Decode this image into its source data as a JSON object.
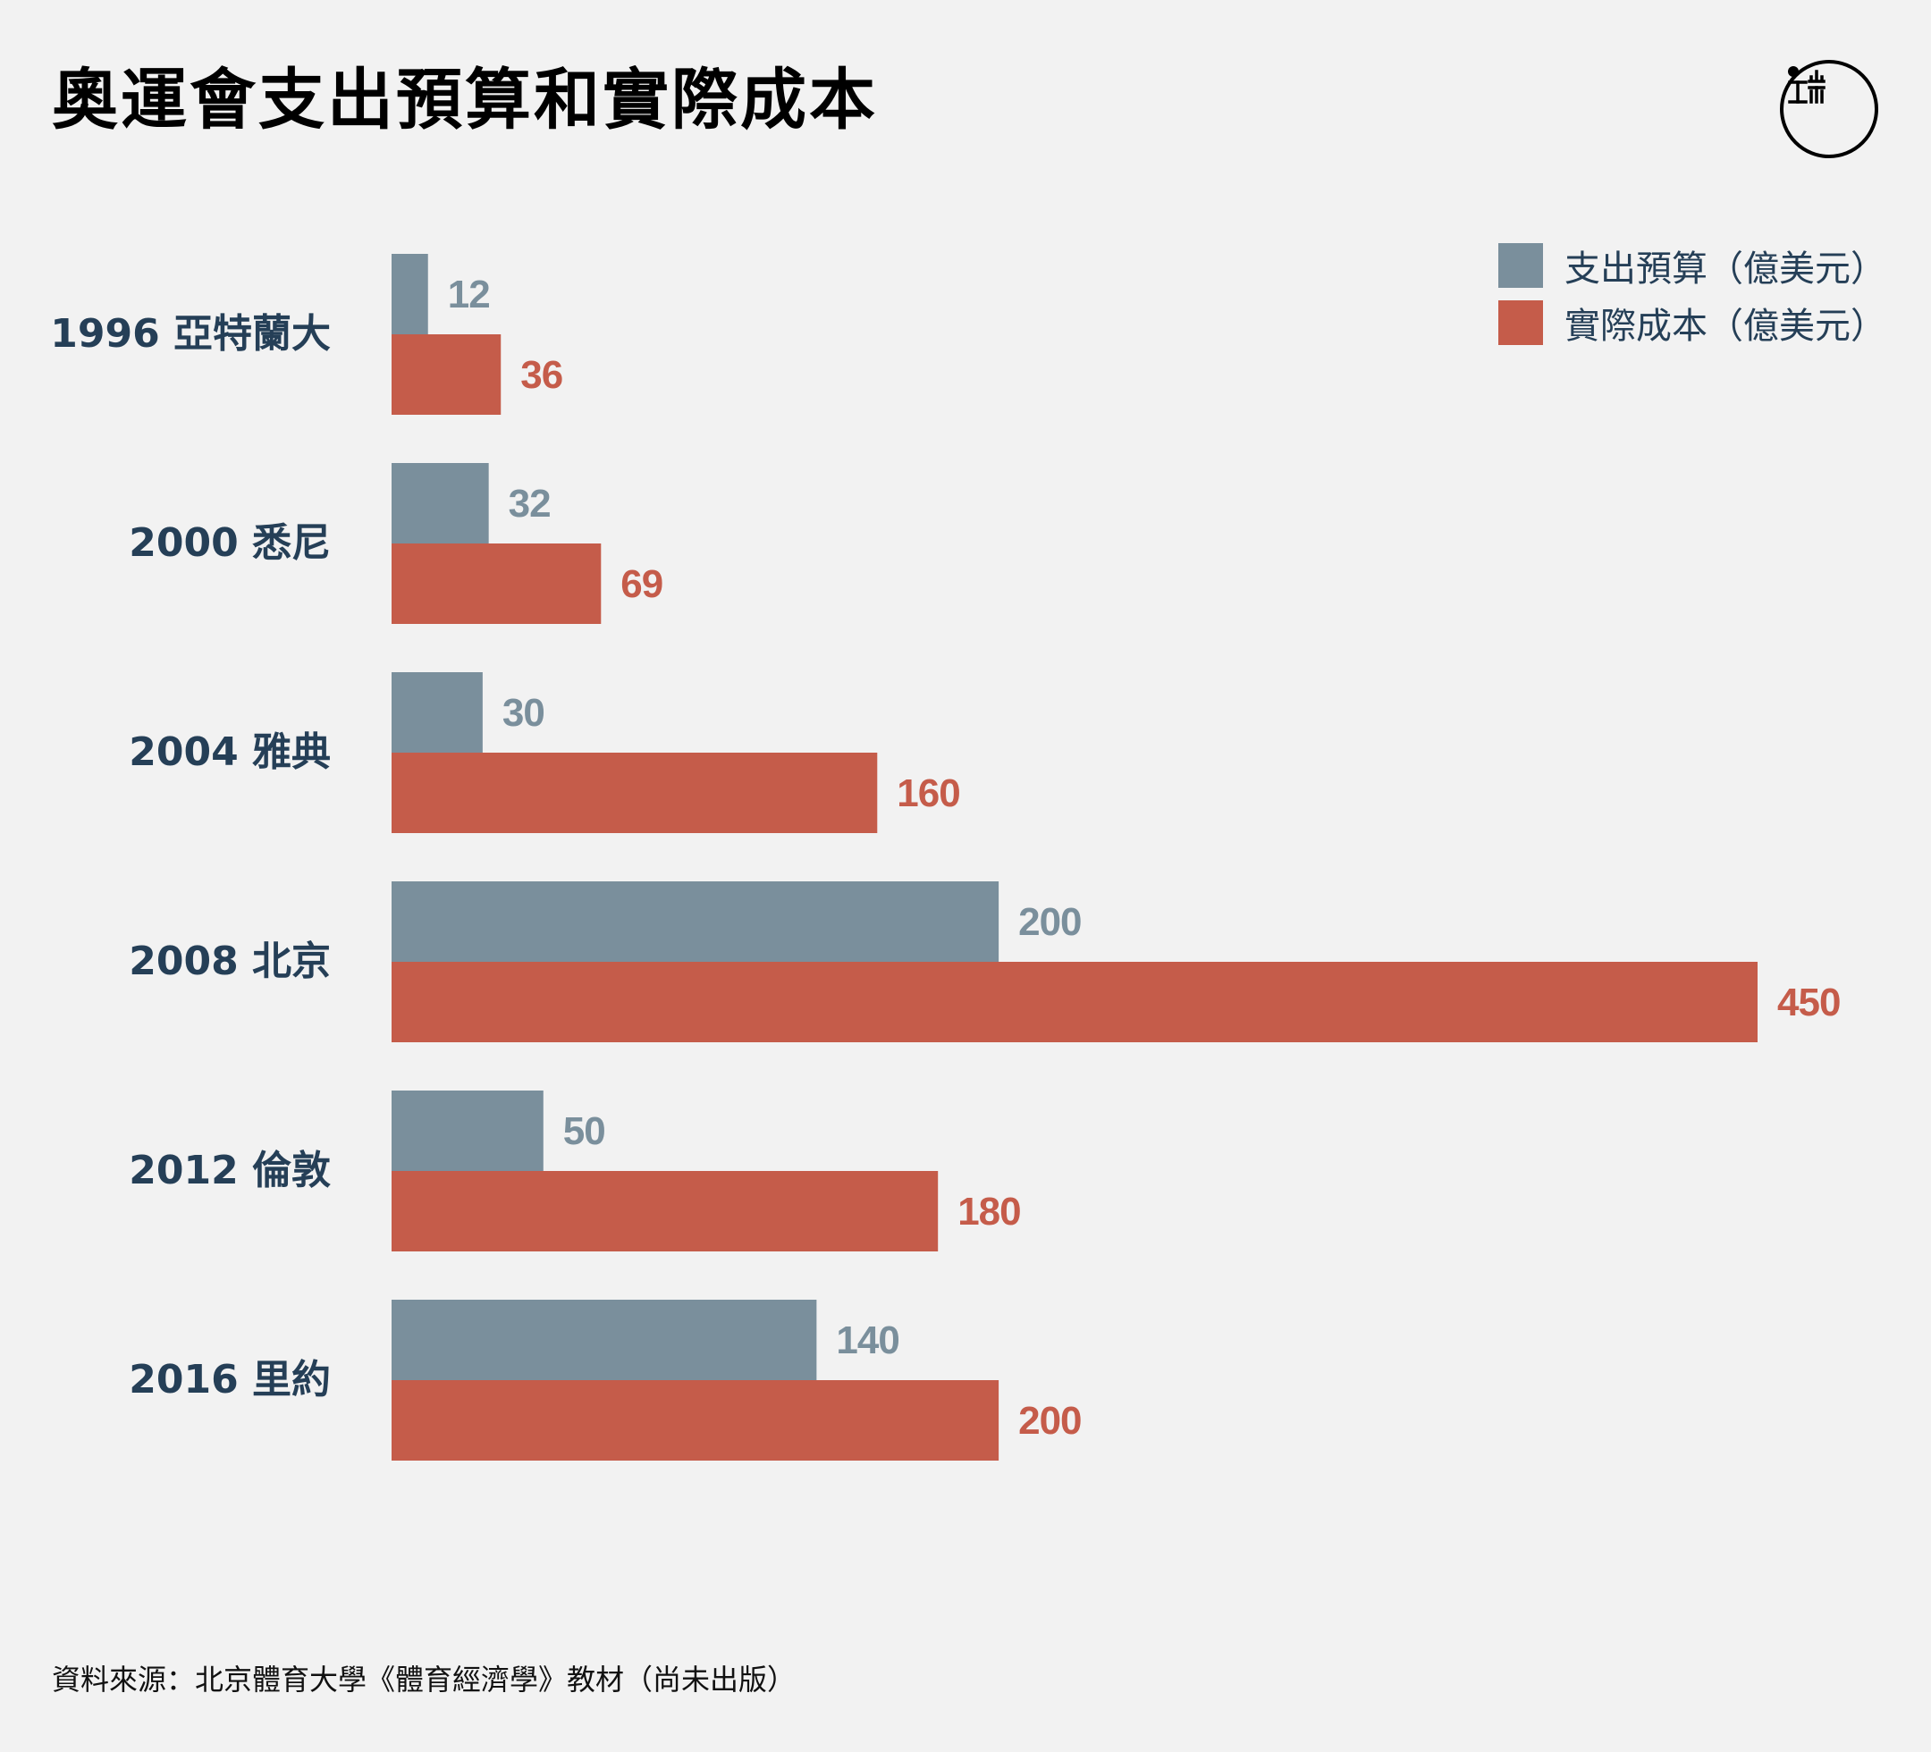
{
  "title": "奧運會支出預算和實際成本",
  "source": "資料來源：北京體育大學《體育經濟學》教材（尚未出版）",
  "logo_icon": "initium-logo-icon",
  "colors": {
    "budget": "#7a8f9c",
    "actual": "#c55c4a",
    "category_label": "#253f57",
    "background": "#f2f2f2"
  },
  "chart_data": {
    "type": "bar",
    "orientation": "horizontal",
    "title": "奧運會支出預算和實際成本",
    "categories": [
      "1996 亞特蘭大",
      "2000 悉尼",
      "2004 雅典",
      "2008 北京",
      "2012 倫敦",
      "2016 里約"
    ],
    "series": [
      {
        "name": "支出預算（億美元）",
        "color": "#7a8f9c",
        "values": [
          12,
          32,
          30,
          200,
          50,
          140
        ]
      },
      {
        "name": "實際成本（億美元）",
        "color": "#c55c4a",
        "values": [
          36,
          69,
          160,
          450,
          180,
          200
        ]
      }
    ],
    "xlim": [
      0,
      450
    ],
    "grid": false,
    "legend_position": "top-right",
    "data_labels": true
  }
}
